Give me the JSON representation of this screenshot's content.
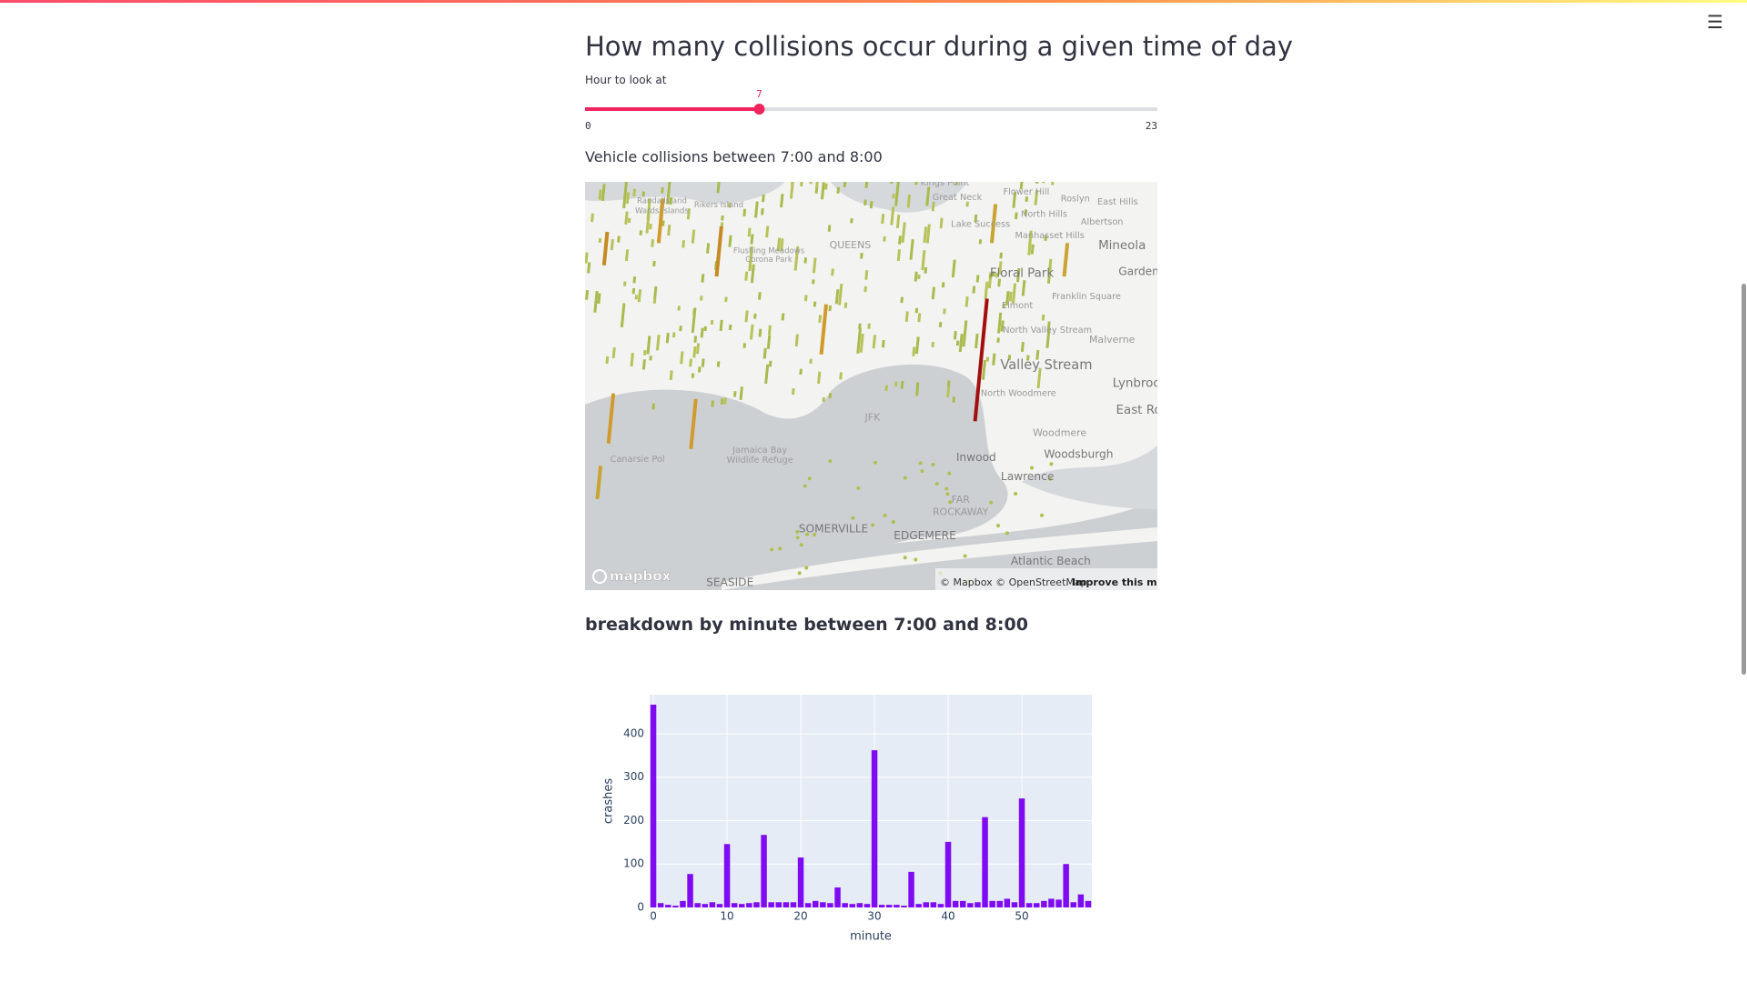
{
  "header": {
    "title": "How many collisions occur during a given time of day"
  },
  "slider": {
    "label": "Hour to look at",
    "min": 0,
    "max": 23,
    "value": 7
  },
  "map": {
    "caption": "Vehicle collisions between 7:00 and 8:00",
    "labels": [
      "Kings Point",
      "Great Neck",
      "Flower Hill",
      "Roslyn",
      "East Hills",
      "North Hills",
      "Albertson",
      "Lake Success",
      "Manhasset Hills",
      "Mineola",
      "Garden",
      "Floral Park",
      "Franklin Square",
      "Elmont",
      "North Valley Stream",
      "Malverne",
      "Valley Stream",
      "Lynbroo",
      "North Woodmere",
      "East Ro",
      "JFK",
      "Woodmere",
      "Woodsburgh",
      "Inwood",
      "Lawrence",
      "Canarsie Pol",
      "Jamaica Bay",
      "Wildlife Refuge",
      "FAR",
      "ROCKAWAY",
      "SOMERVILLE",
      "EDGEMERE",
      "Atlantic Beach",
      "SEASIDE",
      "Rikers Island",
      "Randalls and",
      "Wards Islands",
      "QUEENS",
      "Flushing Meadows",
      "Corona Park"
    ],
    "logo": "mapbox",
    "attribution": "© Mapbox © OpenStreetMap",
    "improve": "Improve this map"
  },
  "chart_data": {
    "type": "bar",
    "title": "breakdown by minute between 7:00 and 8:00",
    "x_label": "minute",
    "y_label": "crashes",
    "color": "#7e0bf2",
    "x": [
      0,
      1,
      2,
      3,
      4,
      5,
      6,
      7,
      8,
      9,
      10,
      11,
      12,
      13,
      14,
      15,
      16,
      17,
      18,
      19,
      20,
      21,
      22,
      23,
      24,
      25,
      26,
      27,
      28,
      29,
      30,
      31,
      32,
      33,
      34,
      35,
      36,
      37,
      38,
      39,
      40,
      41,
      42,
      43,
      44,
      45,
      46,
      47,
      48,
      49,
      50,
      51,
      52,
      53,
      54,
      55,
      56,
      57,
      58,
      59
    ],
    "values": [
      467,
      10,
      6,
      4,
      15,
      77,
      10,
      8,
      12,
      8,
      146,
      10,
      8,
      10,
      12,
      167,
      12,
      12,
      12,
      12,
      115,
      10,
      15,
      12,
      10,
      46,
      10,
      8,
      10,
      8,
      362,
      6,
      6,
      6,
      4,
      82,
      8,
      12,
      12,
      8,
      151,
      15,
      15,
      10,
      12,
      208,
      15,
      15,
      20,
      12,
      251,
      10,
      10,
      15,
      20,
      18,
      100,
      12,
      30,
      15
    ],
    "xlim": [
      -0.5,
      59.5
    ],
    "xticks": [
      0,
      10,
      20,
      30,
      40,
      50
    ],
    "ylim": [
      0,
      490
    ],
    "yticks": [
      0,
      100,
      200,
      300,
      400
    ],
    "grid": true
  }
}
